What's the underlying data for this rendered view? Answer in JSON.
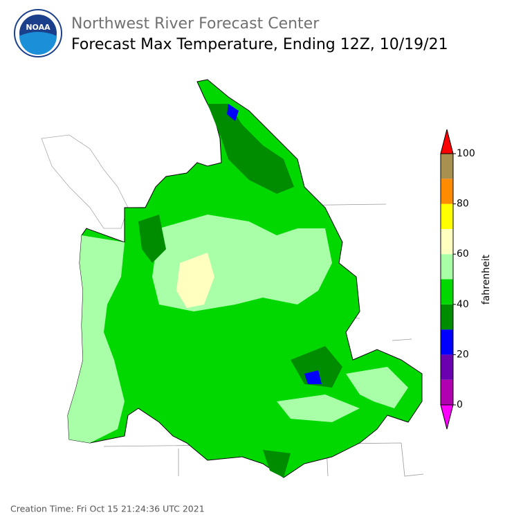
{
  "header": {
    "title": "Northwest River Forecast Center",
    "subtitle": "Forecast Max Temperature, Ending 12Z, 10/19/21",
    "logo": "NOAA"
  },
  "colorbar": {
    "label": "fahrenheit",
    "bounds": [
      0,
      10,
      20,
      30,
      40,
      50,
      60,
      70,
      80,
      90,
      100
    ],
    "colors": [
      "#b000b0",
      "#6a00b0",
      "#0000ff",
      "#008c00",
      "#00d800",
      "#a8ffa8",
      "#ffffc0",
      "#ffff00",
      "#ff8c00",
      "#a89050"
    ],
    "under_color": "#ff00ff",
    "over_color": "#ff0000",
    "ticks": [
      0,
      20,
      40,
      60,
      80,
      100
    ]
  },
  "footer": "Creation Time: Fri Oct 15 21:24:36 UTC 2021"
}
